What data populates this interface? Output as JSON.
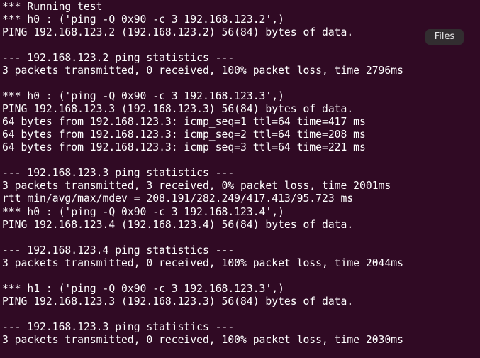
{
  "terminal": {
    "background": "#300a24",
    "lines": [
      "*** Running test",
      "*** h0 : ('ping -Q 0x90 -c 3 192.168.123.2',)",
      "PING 192.168.123.2 (192.168.123.2) 56(84) bytes of data.",
      "",
      "--- 192.168.123.2 ping statistics ---",
      "3 packets transmitted, 0 received, 100% packet loss, time 2796ms",
      "",
      "*** h0 : ('ping -Q 0x90 -c 3 192.168.123.3',)",
      "PING 192.168.123.3 (192.168.123.3) 56(84) bytes of data.",
      "64 bytes from 192.168.123.3: icmp_seq=1 ttl=64 time=417 ms",
      "64 bytes from 192.168.123.3: icmp_seq=2 ttl=64 time=208 ms",
      "64 bytes from 192.168.123.3: icmp_seq=3 ttl=64 time=221 ms",
      "",
      "--- 192.168.123.3 ping statistics ---",
      "3 packets transmitted, 3 received, 0% packet loss, time 2001ms",
      "rtt min/avg/max/mdev = 208.191/282.249/417.413/95.723 ms",
      "*** h0 : ('ping -Q 0x90 -c 3 192.168.123.4',)",
      "PING 192.168.123.4 (192.168.123.4) 56(84) bytes of data.",
      "",
      "--- 192.168.123.4 ping statistics ---",
      "3 packets transmitted, 0 received, 100% packet loss, time 2044ms",
      "",
      "*** h1 : ('ping -Q 0x90 -c 3 192.168.123.3',)",
      "PING 192.168.123.3 (192.168.123.3) 56(84) bytes of data.",
      "",
      "--- 192.168.123.3 ping statistics ---",
      "3 packets transmitted, 0 received, 100% packet loss, time 2030ms"
    ]
  },
  "tooltip": {
    "label": "Files"
  }
}
